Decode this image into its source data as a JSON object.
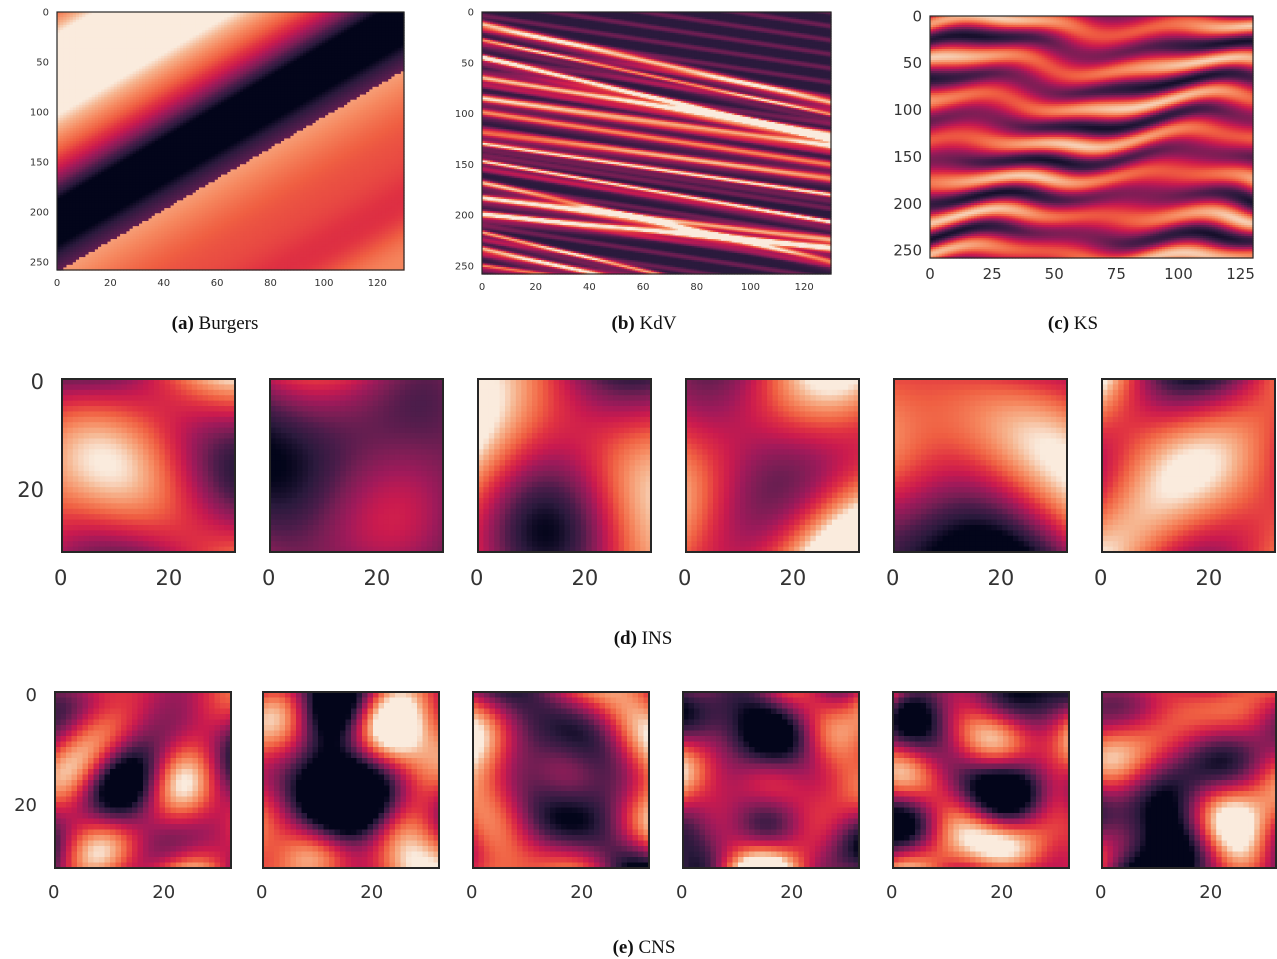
{
  "figure": {
    "panels": [
      {
        "id": "a",
        "letter": "(a)",
        "label": "Burgers"
      },
      {
        "id": "b",
        "letter": "(b)",
        "label": "KdV"
      },
      {
        "id": "c",
        "letter": "(c)",
        "label": "KS"
      },
      {
        "id": "d",
        "letter": "(d)",
        "label": "INS"
      },
      {
        "id": "e",
        "letter": "(e)",
        "label": "CNS"
      }
    ]
  },
  "colors": {
    "colormap": [
      "#03051a",
      "#2b1a3d",
      "#4c1d4b",
      "#7a1f55",
      "#a11a5b",
      "#cb1b4f",
      "#e13342",
      "#f06043",
      "#f6885f",
      "#f6b48e",
      "#faebdd"
    ],
    "frame": "#262626"
  },
  "chart_data": [
    {
      "type": "heatmap",
      "panel": "a",
      "title": "(a) Burgers",
      "x_range": [
        0,
        128
      ],
      "y_range": [
        0,
        256
      ],
      "y_inverted": true,
      "x_ticks": [
        0,
        20,
        40,
        60,
        80,
        100,
        120
      ],
      "y_ticks": [
        0,
        50,
        100,
        150,
        200,
        250
      ],
      "pattern": "single diagonal traveling wave: bright band rising from left to upper right, dark band from lower left",
      "value_range": [
        0,
        1
      ],
      "grid": false
    },
    {
      "type": "heatmap",
      "panel": "b",
      "title": "(b) KdV",
      "x_range": [
        0,
        128
      ],
      "y_range": [
        0,
        256
      ],
      "y_inverted": true,
      "x_ticks": [
        0,
        20,
        40,
        60,
        80,
        100,
        120
      ],
      "y_ticks": [
        0,
        50,
        100,
        150,
        200,
        250
      ],
      "pattern": "many thin bright soliton lines over dark background",
      "value_range": [
        0,
        1
      ],
      "grid": false
    },
    {
      "type": "heatmap",
      "panel": "c",
      "title": "(c) KS",
      "x_range": [
        0,
        128
      ],
      "y_range": [
        0,
        256
      ],
      "y_inverted": true,
      "x_ticks": [
        0,
        25,
        50,
        75,
        100,
        125
      ],
      "y_ticks": [
        0,
        50,
        100,
        150,
        200,
        250
      ],
      "pattern": "horizontal wavy bright and dark stripes",
      "value_range": [
        0,
        1
      ],
      "grid": false
    },
    {
      "type": "heatmap",
      "panel": "d",
      "title": "(d) INS",
      "count": 6,
      "x_range": [
        0,
        32
      ],
      "y_range": [
        0,
        32
      ],
      "y_inverted": true,
      "x_ticks": [
        0,
        20
      ],
      "y_ticks": [
        0,
        20
      ],
      "y_ticks_shown_on": "first",
      "pattern": "smooth large-scale vortical fields, 32x32 grid",
      "value_range": [
        0,
        1
      ],
      "grid": false
    },
    {
      "type": "heatmap",
      "panel": "e",
      "title": "(e) CNS",
      "count": 6,
      "x_range": [
        0,
        32
      ],
      "y_range": [
        0,
        32
      ],
      "y_inverted": true,
      "x_ticks": [
        0,
        20
      ],
      "y_ticks": [
        0,
        20
      ],
      "y_ticks_shown_on": "first",
      "pattern": "turbulent small-scale fields, 32x32 grid",
      "value_range": [
        0,
        1
      ],
      "grid": false
    }
  ]
}
